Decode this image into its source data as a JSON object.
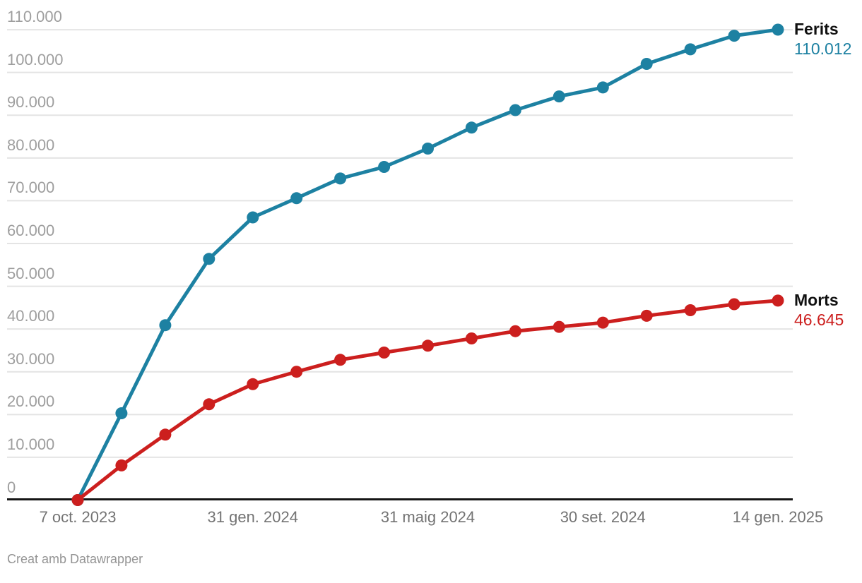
{
  "chart_data": {
    "type": "line",
    "title": "",
    "grid": "horizontal",
    "ylim": [
      0,
      110012
    ],
    "y_tick_labels": [
      "0",
      "10.000",
      "20.000",
      "30.000",
      "40.000",
      "50.000",
      "60.000",
      "70.000",
      "80.000",
      "90.000",
      "100.000",
      "110.000"
    ],
    "x_tick_labels": [
      {
        "index": 0,
        "label": "7 oct. 2023"
      },
      {
        "index": 4,
        "label": "31 gen. 2024"
      },
      {
        "index": 8,
        "label": "31 maig 2024"
      },
      {
        "index": 12,
        "label": "30 set. 2024"
      },
      {
        "index": 16,
        "label": "14 gen. 2025"
      }
    ],
    "x_point_count": 17,
    "series": [
      {
        "name": "Ferits",
        "color": "#1d81a2",
        "end_value": "110.012",
        "values": [
          0,
          20300,
          40900,
          56400,
          66100,
          70600,
          75200,
          77900,
          82200,
          87100,
          91200,
          94400,
          96500,
          102000,
          105400,
          108600,
          110012
        ]
      },
      {
        "name": "Morts",
        "color": "#cc1f1e",
        "end_value": "46.645",
        "values": [
          0,
          8100,
          15300,
          22400,
          27100,
          30000,
          32800,
          34500,
          36100,
          37800,
          39500,
          40500,
          41500,
          43100,
          44400,
          45800,
          46645
        ]
      }
    ],
    "legend_position": "right-of-line-ends"
  },
  "footer": {
    "credit": "Creat amb Datawrapper"
  },
  "colors": {
    "background": "#ffffff",
    "gridline": "#e4e4e4",
    "axis_line": "#151515",
    "y_tick_text": "#9e9e9e",
    "x_tick_text": "#737373",
    "legend_name_text": "#111111",
    "footer_text": "#949494"
  }
}
